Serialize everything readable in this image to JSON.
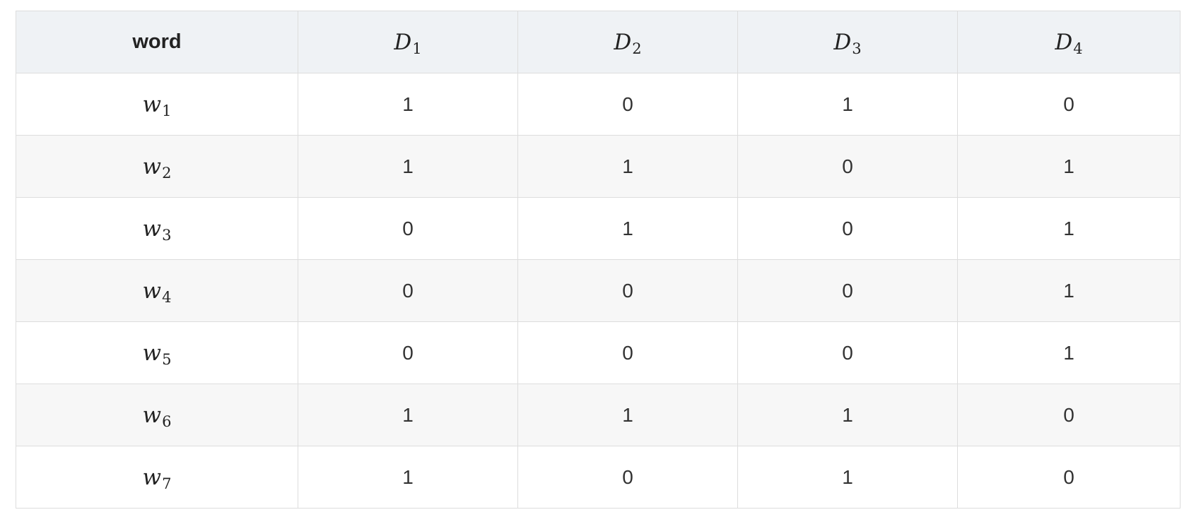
{
  "table": {
    "header": {
      "word": "word",
      "docs": [
        {
          "var": "D",
          "sub": "1"
        },
        {
          "var": "D",
          "sub": "2"
        },
        {
          "var": "D",
          "sub": "3"
        },
        {
          "var": "D",
          "sub": "4"
        }
      ]
    },
    "rows": [
      {
        "var": "w",
        "sub": "1",
        "values": [
          "1",
          "0",
          "1",
          "0"
        ]
      },
      {
        "var": "w",
        "sub": "2",
        "values": [
          "1",
          "1",
          "0",
          "1"
        ]
      },
      {
        "var": "w",
        "sub": "3",
        "values": [
          "0",
          "1",
          "0",
          "1"
        ]
      },
      {
        "var": "w",
        "sub": "4",
        "values": [
          "0",
          "0",
          "0",
          "1"
        ]
      },
      {
        "var": "w",
        "sub": "5",
        "values": [
          "0",
          "0",
          "0",
          "1"
        ]
      },
      {
        "var": "w",
        "sub": "6",
        "values": [
          "1",
          "1",
          "1",
          "0"
        ]
      },
      {
        "var": "w",
        "sub": "7",
        "values": [
          "1",
          "0",
          "1",
          "0"
        ]
      }
    ]
  }
}
